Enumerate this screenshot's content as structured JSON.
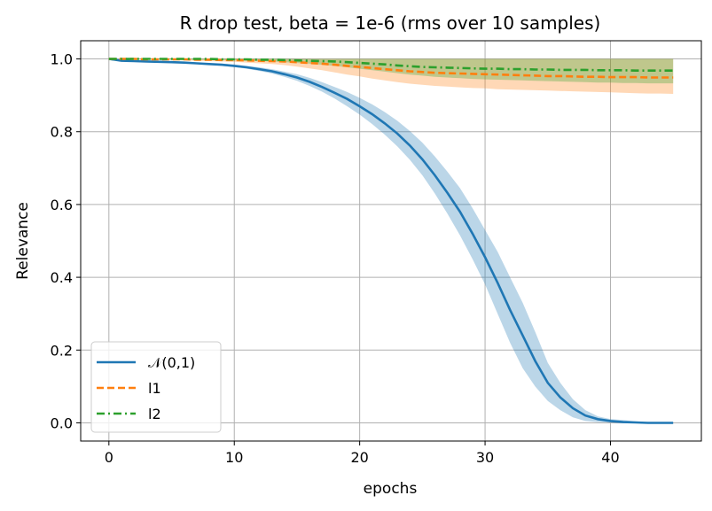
{
  "chart_data": {
    "type": "line",
    "title": "R drop test, beta = 1e-6  (rms over 10 samples)",
    "xlabel": "epochs",
    "ylabel": "Relevance",
    "xlim": [
      -2.25,
      47.25
    ],
    "ylim": [
      -0.05,
      1.05
    ],
    "xticks": [
      0,
      10,
      20,
      30,
      40
    ],
    "yticks": [
      0.0,
      0.2,
      0.4,
      0.6,
      0.8,
      1.0
    ],
    "xtick_labels": [
      "0",
      "10",
      "20",
      "30",
      "40"
    ],
    "ytick_labels": [
      "0.0",
      "0.2",
      "0.4",
      "0.6",
      "0.8",
      "1.0"
    ],
    "grid": true,
    "legend_position": "lower-left",
    "x": [
      0,
      1,
      2,
      3,
      4,
      5,
      6,
      7,
      8,
      9,
      10,
      11,
      12,
      13,
      14,
      15,
      16,
      17,
      18,
      19,
      20,
      21,
      22,
      23,
      24,
      25,
      26,
      27,
      28,
      29,
      30,
      31,
      32,
      33,
      34,
      35,
      36,
      37,
      38,
      39,
      40,
      41,
      42,
      43,
      44,
      45
    ],
    "series": [
      {
        "name": "𝒩(0,1)",
        "color": "#1f77b4",
        "dash": "solid",
        "values": [
          1.0,
          0.995,
          0.994,
          0.993,
          0.992,
          0.991,
          0.99,
          0.988,
          0.986,
          0.984,
          0.981,
          0.977,
          0.972,
          0.966,
          0.958,
          0.949,
          0.937,
          0.923,
          0.907,
          0.89,
          0.87,
          0.848,
          0.823,
          0.795,
          0.762,
          0.724,
          0.68,
          0.632,
          0.58,
          0.52,
          0.455,
          0.385,
          0.31,
          0.24,
          0.17,
          0.11,
          0.07,
          0.04,
          0.02,
          0.01,
          0.005,
          0.002,
          0.001,
          0.0,
          0.0,
          0.0
        ],
        "lower": [
          1.0,
          0.994,
          0.993,
          0.992,
          0.991,
          0.99,
          0.989,
          0.987,
          0.984,
          0.981,
          0.978,
          0.973,
          0.967,
          0.96,
          0.951,
          0.94,
          0.926,
          0.91,
          0.891,
          0.87,
          0.847,
          0.821,
          0.792,
          0.76,
          0.723,
          0.68,
          0.63,
          0.575,
          0.515,
          0.45,
          0.38,
          0.3,
          0.22,
          0.15,
          0.1,
          0.06,
          0.035,
          0.015,
          0.005,
          0.002,
          0.001,
          0.0,
          0.0,
          0.0,
          0.0,
          0.0
        ],
        "upper": [
          1.0,
          0.996,
          0.995,
          0.994,
          0.993,
          0.992,
          0.991,
          0.99,
          0.988,
          0.987,
          0.985,
          0.981,
          0.977,
          0.972,
          0.965,
          0.958,
          0.948,
          0.936,
          0.923,
          0.909,
          0.893,
          0.875,
          0.854,
          0.83,
          0.802,
          0.77,
          0.732,
          0.69,
          0.645,
          0.59,
          0.53,
          0.47,
          0.4,
          0.33,
          0.25,
          0.165,
          0.11,
          0.065,
          0.035,
          0.018,
          0.01,
          0.008,
          0.004,
          0.001,
          0.0,
          0.0
        ]
      },
      {
        "name": "l1",
        "color": "#ff7f0e",
        "dash": "dashed",
        "values": [
          1.0,
          1.0,
          1.0,
          0.999,
          0.999,
          0.999,
          0.999,
          0.998,
          0.998,
          0.997,
          0.997,
          0.996,
          0.995,
          0.994,
          0.993,
          0.991,
          0.989,
          0.987,
          0.984,
          0.981,
          0.978,
          0.975,
          0.972,
          0.969,
          0.966,
          0.964,
          0.962,
          0.961,
          0.96,
          0.959,
          0.958,
          0.957,
          0.956,
          0.955,
          0.954,
          0.953,
          0.953,
          0.952,
          0.951,
          0.951,
          0.95,
          0.95,
          0.95,
          0.949,
          0.949,
          0.949
        ],
        "lower": [
          1.0,
          1.0,
          0.999,
          0.998,
          0.997,
          0.997,
          0.996,
          0.995,
          0.994,
          0.993,
          0.992,
          0.99,
          0.988,
          0.986,
          0.983,
          0.979,
          0.974,
          0.969,
          0.963,
          0.957,
          0.952,
          0.946,
          0.941,
          0.936,
          0.932,
          0.929,
          0.926,
          0.924,
          0.922,
          0.92,
          0.919,
          0.917,
          0.916,
          0.915,
          0.914,
          0.913,
          0.912,
          0.911,
          0.91,
          0.909,
          0.908,
          0.907,
          0.906,
          0.905,
          0.905,
          0.904
        ],
        "upper": [
          1.0,
          1.0,
          1.0,
          1.0,
          1.0,
          1.0,
          1.0,
          1.0,
          1.0,
          1.0,
          1.0,
          1.0,
          1.0,
          1.0,
          1.0,
          1.0,
          1.0,
          1.0,
          1.0,
          1.0,
          1.0,
          1.0,
          1.0,
          1.0,
          1.0,
          1.0,
          1.0,
          1.0,
          1.0,
          1.0,
          1.0,
          1.0,
          1.0,
          1.0,
          1.0,
          1.0,
          1.0,
          1.0,
          1.0,
          1.0,
          1.0,
          1.0,
          1.0,
          1.0,
          1.0,
          1.0
        ]
      },
      {
        "name": "l2",
        "color": "#2ca02c",
        "dash": "dashdot",
        "values": [
          1.0,
          1.0,
          1.0,
          1.0,
          1.0,
          1.0,
          1.0,
          1.0,
          1.0,
          0.999,
          0.999,
          0.999,
          0.998,
          0.998,
          0.997,
          0.996,
          0.995,
          0.994,
          0.993,
          0.991,
          0.989,
          0.987,
          0.985,
          0.982,
          0.98,
          0.978,
          0.977,
          0.976,
          0.975,
          0.974,
          0.973,
          0.973,
          0.972,
          0.972,
          0.971,
          0.971,
          0.97,
          0.97,
          0.97,
          0.969,
          0.969,
          0.969,
          0.968,
          0.968,
          0.968,
          0.968
        ],
        "lower": [
          1.0,
          1.0,
          1.0,
          0.999,
          0.999,
          0.999,
          0.998,
          0.998,
          0.997,
          0.997,
          0.996,
          0.995,
          0.994,
          0.993,
          0.991,
          0.989,
          0.987,
          0.984,
          0.981,
          0.977,
          0.973,
          0.969,
          0.965,
          0.961,
          0.957,
          0.954,
          0.951,
          0.949,
          0.947,
          0.945,
          0.944,
          0.943,
          0.942,
          0.941,
          0.94,
          0.939,
          0.938,
          0.937,
          0.936,
          0.935,
          0.935,
          0.934,
          0.934,
          0.933,
          0.933,
          0.933
        ],
        "upper": [
          1.0,
          1.0,
          1.0,
          1.0,
          1.0,
          1.0,
          1.0,
          1.0,
          1.0,
          1.0,
          1.0,
          1.0,
          1.0,
          1.0,
          1.0,
          1.0,
          1.0,
          1.0,
          1.0,
          1.0,
          1.0,
          1.0,
          1.0,
          1.0,
          1.0,
          1.0,
          1.0,
          1.0,
          1.0,
          1.0,
          1.0,
          1.0,
          1.0,
          1.0,
          1.0,
          1.0,
          1.0,
          1.0,
          1.0,
          1.0,
          1.0,
          1.0,
          1.0,
          1.0,
          1.0,
          1.0
        ]
      }
    ]
  }
}
